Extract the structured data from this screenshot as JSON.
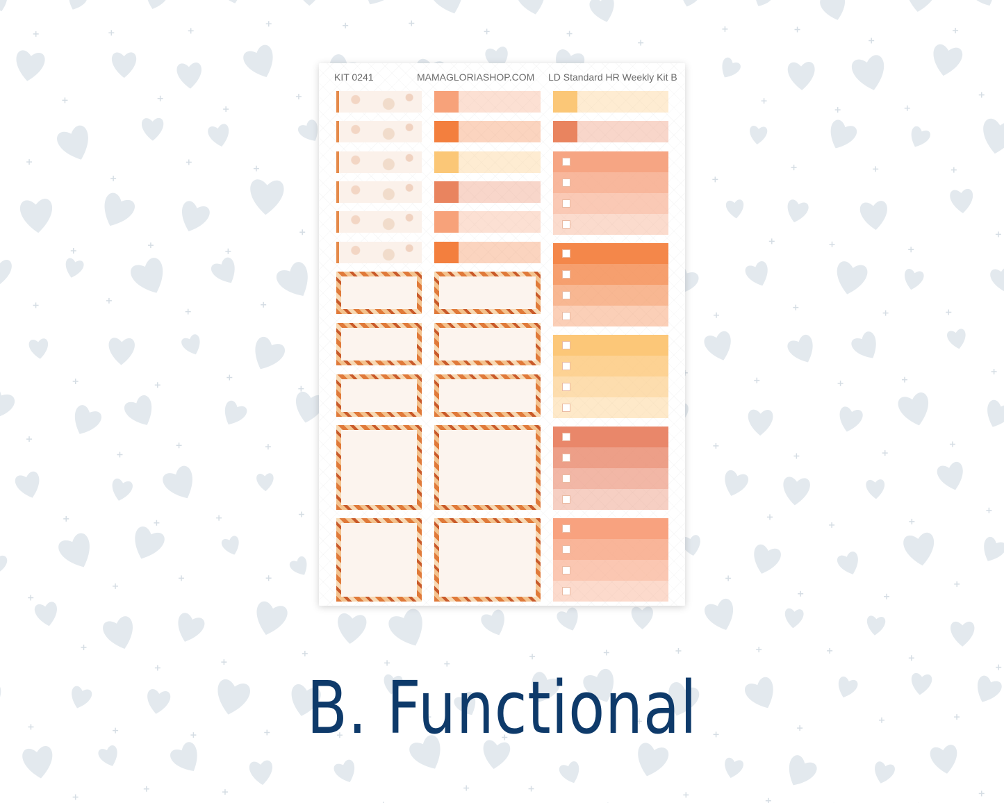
{
  "sheet": {
    "kit_number": "KIT 0241",
    "shop": "MAMAGLORIASHOP.COM",
    "kit_name": "LD Standard HR Weekly Kit B"
  },
  "title": "B. Functional",
  "colors": {
    "title": "#0e3a6a",
    "hearts": "#e3e9ee",
    "middle_column_tabs": [
      "#f7a27a",
      "#f37f3e",
      "#fbc777",
      "#e9845f",
      "#f7a27a",
      "#f37f3e"
    ],
    "right_column_tabs": [
      "#fbc777",
      "#e9845f"
    ],
    "checklists": [
      "#f6a583",
      "#f4874a",
      "#fcc778",
      "#e9876a",
      "#f8a27f"
    ]
  }
}
